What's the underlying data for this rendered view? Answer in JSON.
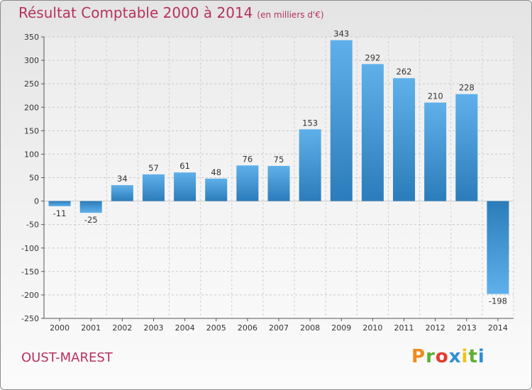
{
  "header": {
    "title": "Résultat Comptable 2000 à 2014",
    "subtitle": "(en milliers d'€)"
  },
  "footer": {
    "commune": "OUST-MAREST",
    "logo": "Proxiti",
    "logo_colors": [
      "#f08a1c",
      "#5cb030",
      "#e23b2c",
      "#2f8fd0",
      "#f2c21a",
      "#5cb030",
      "#2f8fd0"
    ]
  },
  "colors": {
    "title": "#b5315f",
    "bar_light": "#5fb0ea",
    "bar_dark": "#2b7cba"
  },
  "chart_data": {
    "type": "bar",
    "title": "Résultat Comptable 2000 à 2014",
    "subtitle": "(en milliers d'€)",
    "categories": [
      "2000",
      "2001",
      "2002",
      "2003",
      "2004",
      "2005",
      "2006",
      "2007",
      "2008",
      "2009",
      "2010",
      "2011",
      "2012",
      "2013",
      "2014"
    ],
    "values": [
      -11,
      -25,
      34,
      57,
      61,
      48,
      76,
      75,
      153,
      343,
      292,
      262,
      210,
      228,
      -198
    ],
    "data_labels": [
      "-11",
      "-25",
      "34",
      "57",
      "61",
      "48",
      "76",
      "75",
      "153",
      "343",
      "292",
      "262",
      "210",
      "228",
      "-198"
    ],
    "ylim": [
      -250,
      350
    ],
    "yticks": [
      350,
      300,
      250,
      200,
      150,
      100,
      50,
      0,
      -50,
      -100,
      -150,
      -200,
      -250
    ],
    "ytick_labels": [
      "350",
      "300",
      "250",
      "200",
      "150",
      "100",
      "50",
      "0",
      "-50",
      "-100",
      "-150",
      "-200",
      "-250"
    ],
    "grid": true,
    "xlabel": "",
    "ylabel": ""
  }
}
